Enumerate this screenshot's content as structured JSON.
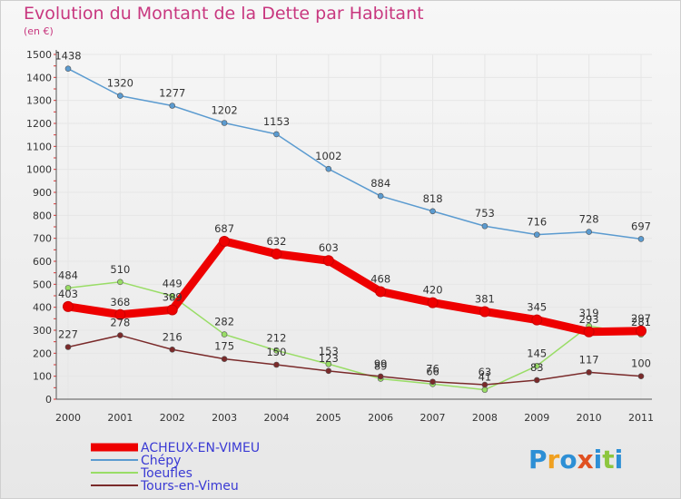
{
  "title": "Evolution du Montant de la Dette par Habitant",
  "unit": "(en €)",
  "logo": "Proxiti",
  "chart_data": {
    "type": "line",
    "title": "Evolution du Montant de la Dette par Habitant",
    "ylabel": "(en €)",
    "xlabel": "",
    "x": [
      "2000",
      "2001",
      "2002",
      "2003",
      "2004",
      "2005",
      "2006",
      "2007",
      "2008",
      "2009",
      "2010",
      "2011"
    ],
    "ylim": [
      0,
      1500
    ],
    "yticks": [
      0,
      100,
      200,
      300,
      400,
      500,
      600,
      700,
      800,
      900,
      1000,
      1100,
      1200,
      1300,
      1400,
      1500
    ],
    "grid": true,
    "legend": "bottom-left",
    "series": [
      {
        "name": "ACHEUX-EN-VIMEU",
        "color": "#ee0000",
        "values": [
          403,
          368,
          389,
          687,
          632,
          603,
          468,
          420,
          381,
          345,
          293,
          297
        ]
      },
      {
        "name": "Chépy",
        "color": "#5b9bd0",
        "values": [
          1438,
          1320,
          1277,
          1202,
          1153,
          1002,
          884,
          818,
          753,
          716,
          728,
          697
        ]
      },
      {
        "name": "Toeufles",
        "color": "#99dd66",
        "values": [
          484,
          510,
          449,
          282,
          212,
          153,
          89,
          66,
          41,
          145,
          319,
          281
        ]
      },
      {
        "name": "Tours-en-Vimeu",
        "color": "#7a2a2a",
        "values": [
          227,
          278,
          216,
          175,
          150,
          123,
          99,
          76,
          63,
          83,
          117,
          100
        ]
      }
    ]
  }
}
